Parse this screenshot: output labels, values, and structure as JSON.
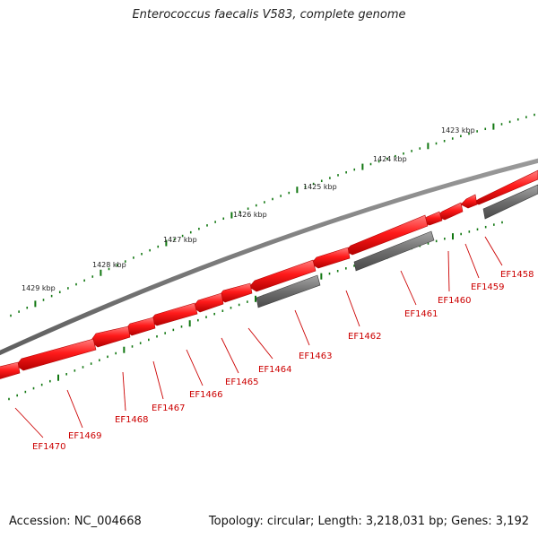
{
  "map": {
    "title": "Enterococcus faecalis V583, complete genome",
    "accession": "Accession: NC_004668",
    "summary": "Topology: circular; Length: 3,218,031 bp; Genes: 3,192"
  },
  "scale": [
    {
      "label": "1423 kbp"
    },
    {
      "label": "1424 kbp"
    },
    {
      "label": "1425 kbp"
    },
    {
      "label": "1426 kbp"
    },
    {
      "label": "1427 kbp"
    },
    {
      "label": "1428 kbp"
    },
    {
      "label": "1429 kbp"
    }
  ],
  "genes": [
    {
      "label": "EF1458"
    },
    {
      "label": "EF1459"
    },
    {
      "label": "EF1460"
    },
    {
      "label": "EF1461"
    },
    {
      "label": "EF1462"
    },
    {
      "label": "EF1463"
    },
    {
      "label": "EF1464"
    },
    {
      "label": "EF1465"
    },
    {
      "label": "EF1466"
    },
    {
      "label": "EF1467"
    },
    {
      "label": "EF1468"
    },
    {
      "label": "EF1469"
    },
    {
      "label": "EF1470"
    }
  ],
  "colors": {
    "gene": "#ff1a1a",
    "gene_dark": "#b30000",
    "gene_light": "#ff7a7a",
    "rna": "#6e6e6e",
    "rna_light": "#a0a0a0",
    "backbone": "#777777",
    "tick": "#117711",
    "leader": "#cc0000"
  }
}
